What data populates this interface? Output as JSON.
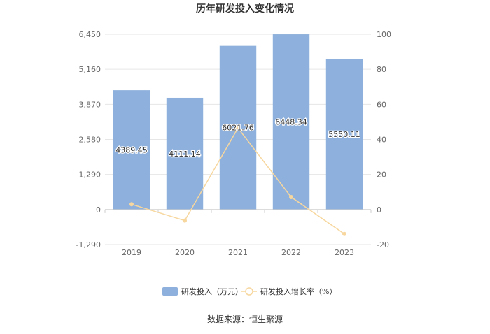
{
  "chart_data": {
    "type": "bar",
    "title": "历年研发投入变化情况",
    "categories": [
      "2019",
      "2020",
      "2021",
      "2022",
      "2023"
    ],
    "series": [
      {
        "name": "研发投入（万元）",
        "type": "bar",
        "axis": "left",
        "values": [
          4389.45,
          4111.14,
          6021.76,
          6448.34,
          5550.11
        ],
        "labels": [
          "4389.45",
          "4111.14",
          "6021.76",
          "6448.34",
          "5550.11"
        ],
        "color": "#8eb0dc"
      },
      {
        "name": "研发投入增长率（%）",
        "type": "line",
        "axis": "right",
        "values": [
          3.0,
          -6.3,
          46.5,
          7.1,
          -13.9
        ],
        "color": "#f7d79e"
      }
    ],
    "y_left": {
      "ylim": [
        -1290,
        6450
      ],
      "ticks": [
        -1290,
        0,
        1290,
        2580,
        3870,
        5160,
        6450
      ],
      "tick_labels": [
        "-1,290",
        "0",
        "1,290",
        "2,580",
        "3,870",
        "5,160",
        "6,450"
      ]
    },
    "y_right": {
      "ylim": [
        -20,
        100
      ],
      "ticks": [
        -20,
        0,
        20,
        40,
        60,
        80,
        100
      ],
      "tick_labels": [
        "-20",
        "0",
        "20",
        "40",
        "60",
        "80",
        "100"
      ]
    },
    "grid": true,
    "legend_position": "bottom"
  },
  "source": "数据来源：恒生聚源"
}
